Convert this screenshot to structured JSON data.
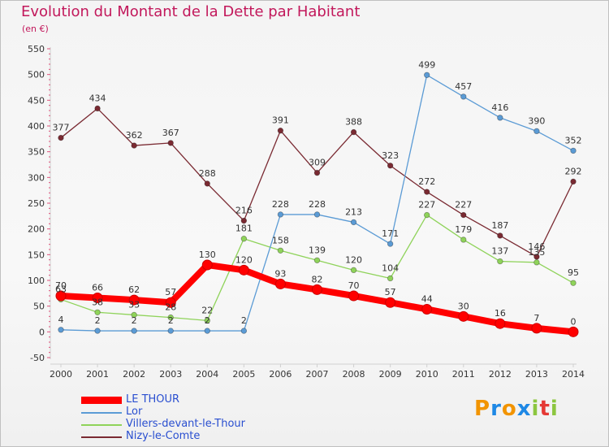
{
  "title": "Evolution du Montant de la Dette par Habitant",
  "unit": "(en €)",
  "logo_text": "Proxiti",
  "chart_data": {
    "type": "line",
    "title": "Evolution du Montant de la Dette par Habitant",
    "ylabel": "(en €)",
    "xlabel": "",
    "ylim": [
      -50,
      550
    ],
    "yticks": [
      -50,
      0,
      50,
      100,
      150,
      200,
      250,
      300,
      350,
      400,
      450,
      500,
      550
    ],
    "grid": false,
    "legend_position": "bottom-left",
    "categories": [
      "2000",
      "2001",
      "2002",
      "2003",
      "2004",
      "2005",
      "2006",
      "2007",
      "2008",
      "2009",
      "2010",
      "2011",
      "2012",
      "2013",
      "2014"
    ],
    "series": [
      {
        "name": "LE THOUR",
        "color": "#ff0000",
        "values": [
          70,
          66,
          62,
          57,
          130,
          120,
          93,
          82,
          70,
          57,
          44,
          30,
          16,
          7,
          0
        ]
      },
      {
        "name": "Lor",
        "color": "#5b9bd5",
        "values": [
          4,
          2,
          2,
          2,
          2,
          2,
          228,
          228,
          213,
          171,
          499,
          457,
          416,
          390,
          352
        ]
      },
      {
        "name": "Villers-devant-le-Thour",
        "color": "#8fd35a",
        "values": [
          63,
          38,
          33,
          28,
          22,
          181,
          158,
          139,
          120,
          104,
          227,
          179,
          137,
          135,
          95
        ]
      },
      {
        "name": "Nizy-le-Comte",
        "color": "#7a2a32",
        "values": [
          377,
          434,
          362,
          367,
          288,
          216,
          391,
          309,
          388,
          323,
          272,
          227,
          187,
          146,
          292
        ]
      }
    ]
  }
}
